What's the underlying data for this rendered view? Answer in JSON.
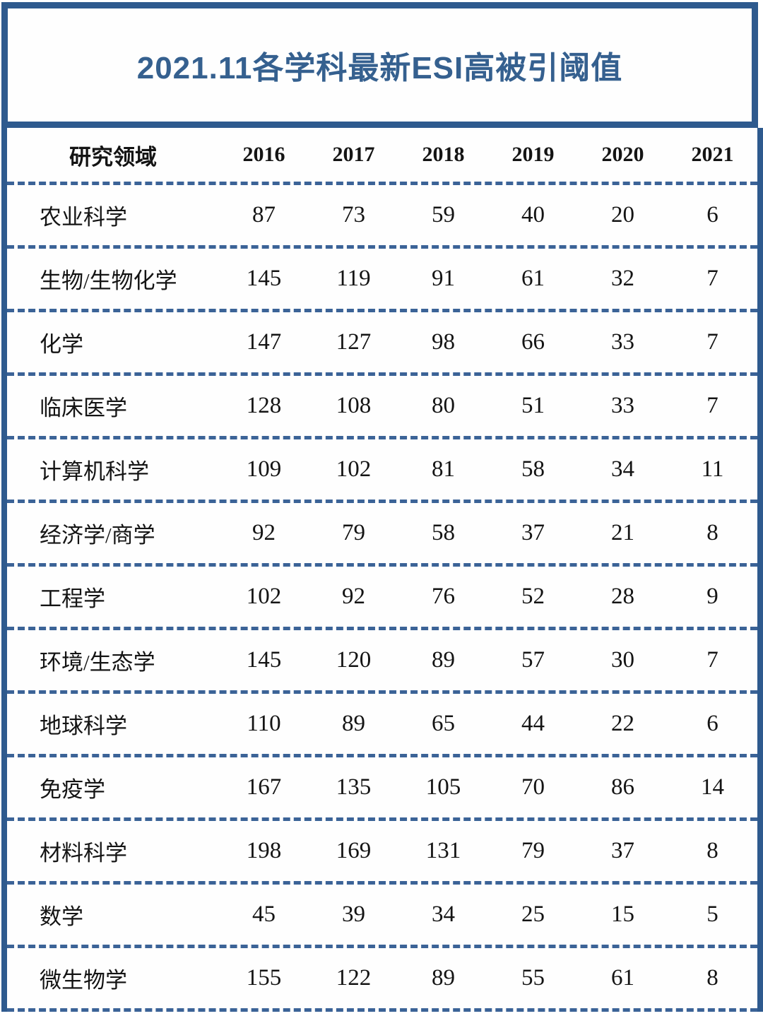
{
  "title": "2021.11各学科最新ESI高被引阈值",
  "colors": {
    "border_blue": "#2e5a8e",
    "dash_blue": "#3b6397",
    "title_blue": "#35608f"
  },
  "chart_data": {
    "type": "table",
    "title": "2021.11各学科最新ESI高被引阈值",
    "field_header": "研究领域",
    "columns": [
      "2016",
      "2017",
      "2018",
      "2019",
      "2020",
      "2021"
    ],
    "rows": [
      {
        "field": "农业科学",
        "values": [
          87,
          73,
          59,
          40,
          20,
          6
        ]
      },
      {
        "field": "生物/生物化学",
        "values": [
          145,
          119,
          91,
          61,
          32,
          7
        ]
      },
      {
        "field": "化学",
        "values": [
          147,
          127,
          98,
          66,
          33,
          7
        ]
      },
      {
        "field": "临床医学",
        "values": [
          128,
          108,
          80,
          51,
          33,
          7
        ]
      },
      {
        "field": "计算机科学",
        "values": [
          109,
          102,
          81,
          58,
          34,
          11
        ]
      },
      {
        "field": "经济学/商学",
        "values": [
          92,
          79,
          58,
          37,
          21,
          8
        ]
      },
      {
        "field": "工程学",
        "values": [
          102,
          92,
          76,
          52,
          28,
          9
        ]
      },
      {
        "field": "环境/生态学",
        "values": [
          145,
          120,
          89,
          57,
          30,
          7
        ]
      },
      {
        "field": "地球科学",
        "values": [
          110,
          89,
          65,
          44,
          22,
          6
        ]
      },
      {
        "field": "免疫学",
        "values": [
          167,
          135,
          105,
          70,
          86,
          14
        ]
      },
      {
        "field": "材料科学",
        "values": [
          198,
          169,
          131,
          79,
          37,
          8
        ]
      },
      {
        "field": "数学",
        "values": [
          45,
          39,
          34,
          25,
          15,
          5
        ]
      },
      {
        "field": "微生物学",
        "values": [
          155,
          122,
          89,
          55,
          61,
          8
        ]
      }
    ]
  }
}
